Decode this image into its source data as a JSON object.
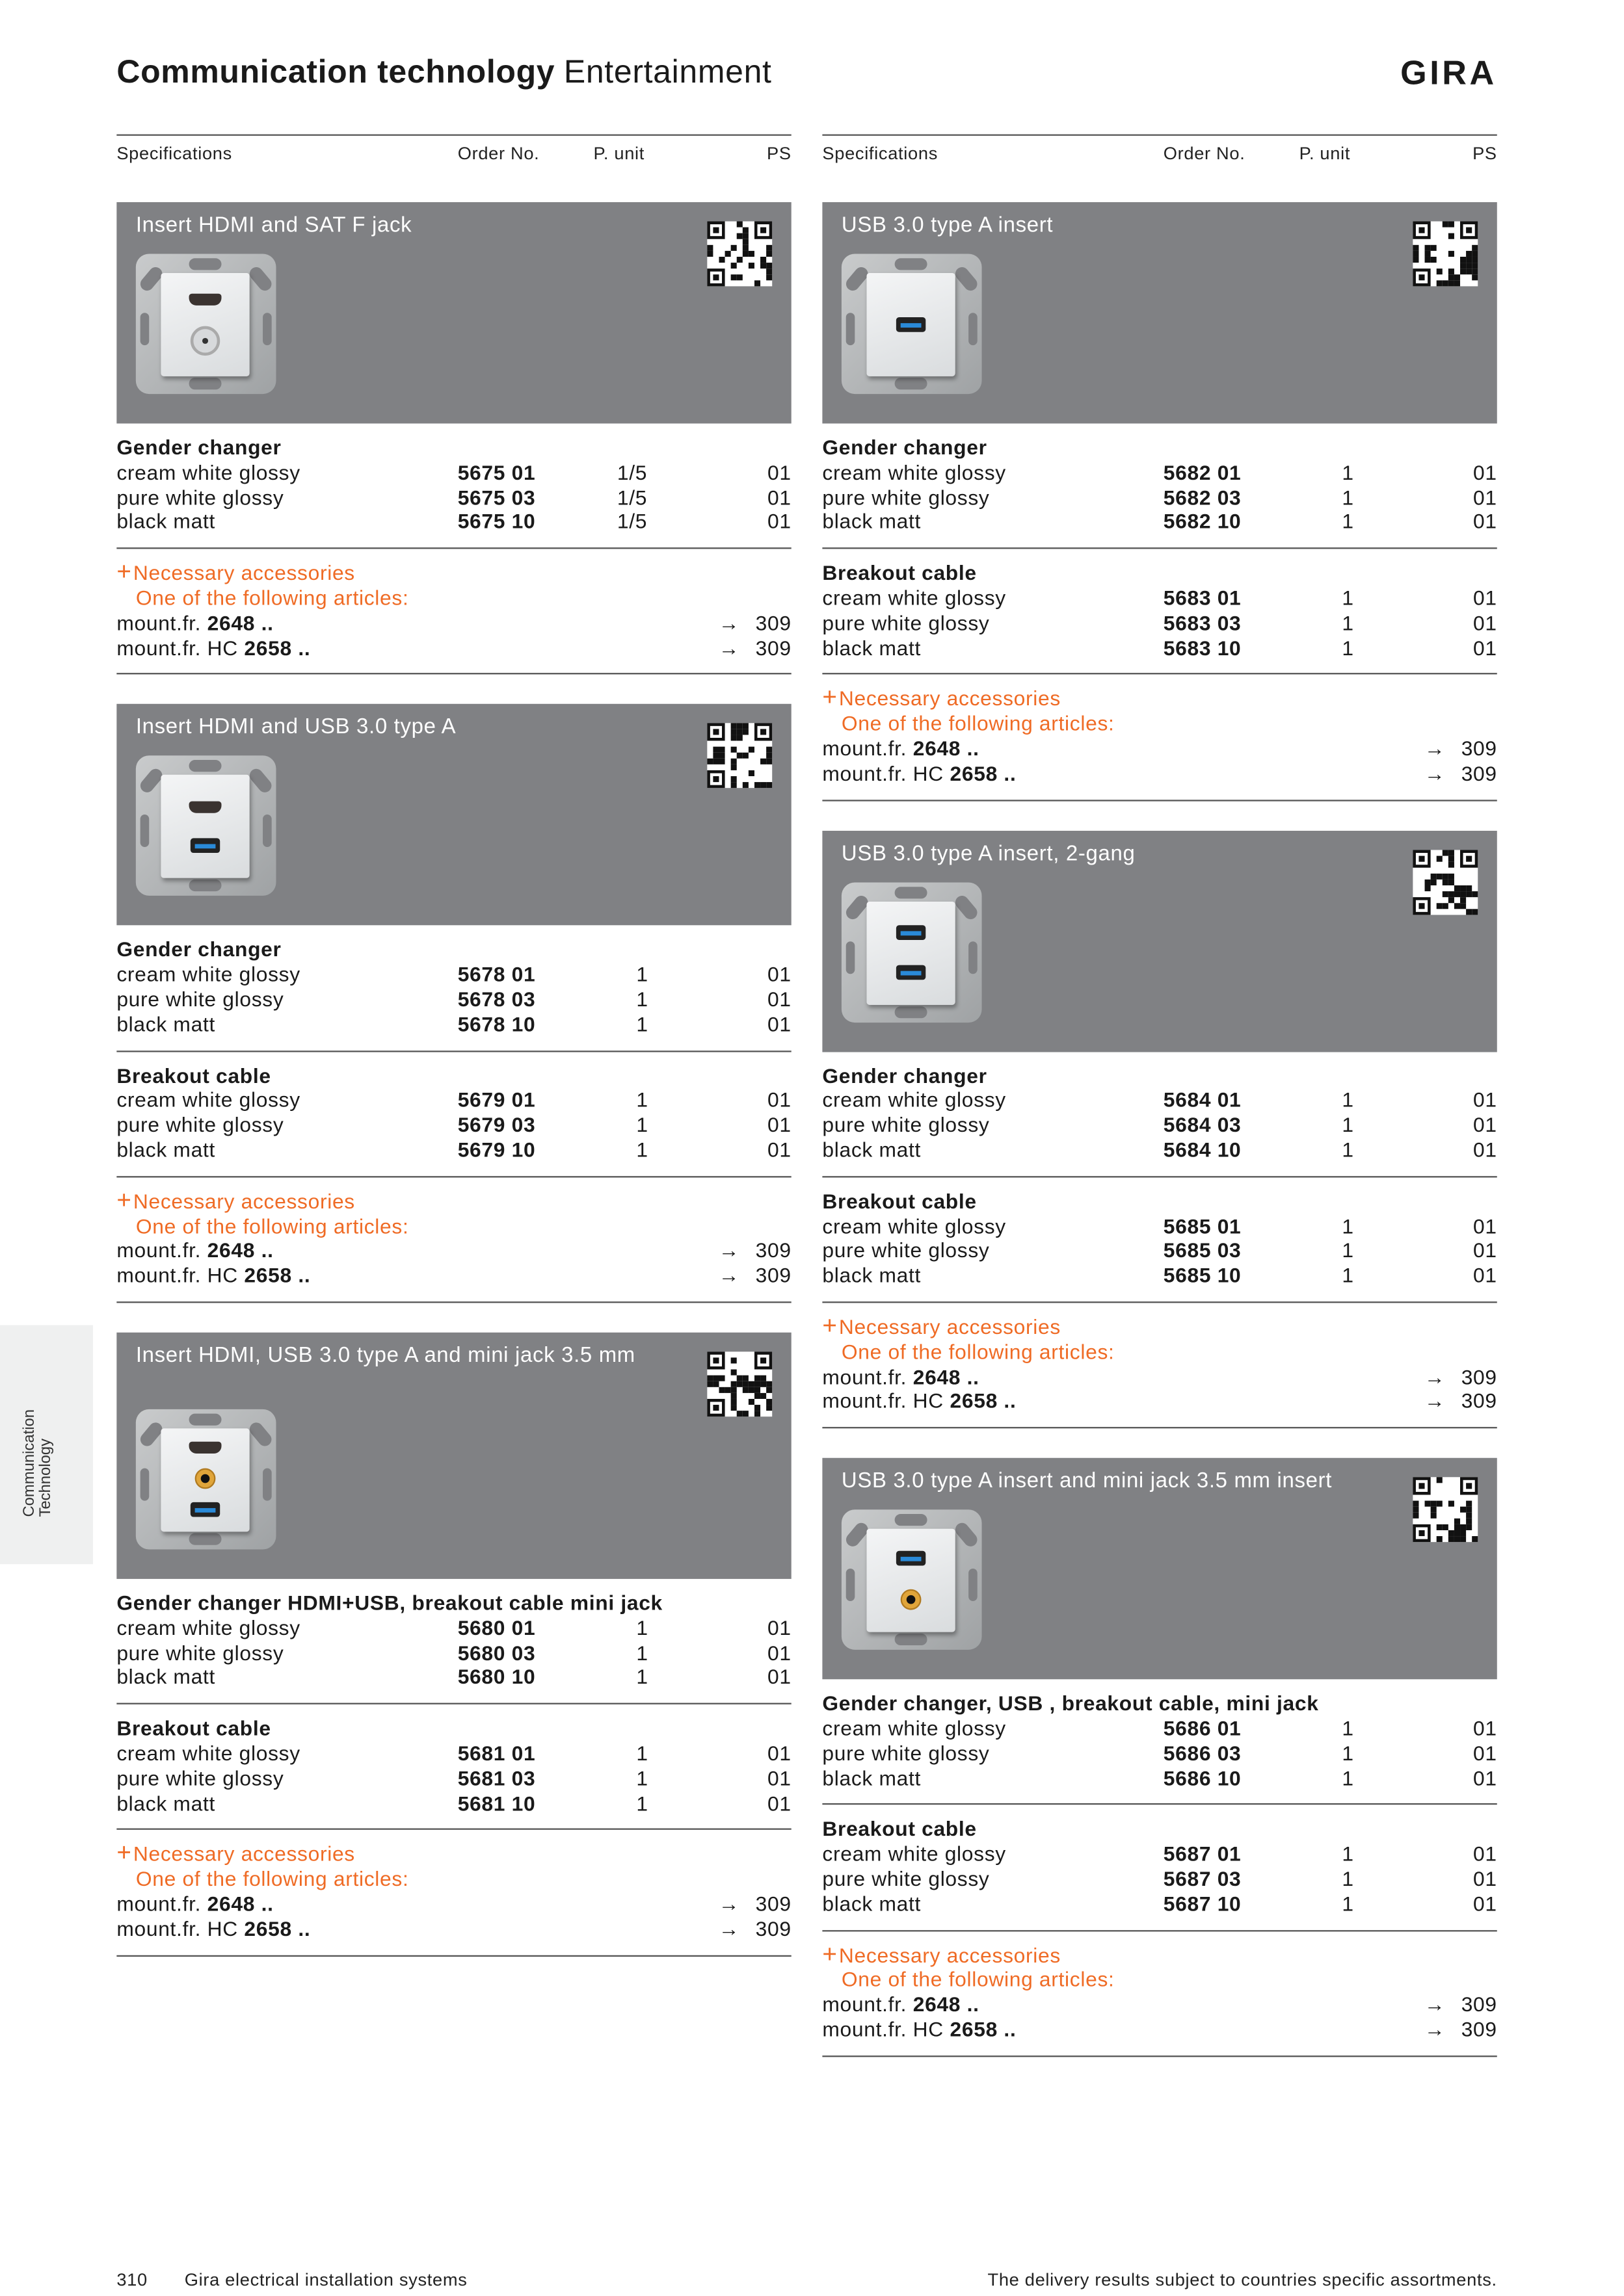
{
  "header": {
    "title": "Communication technology",
    "subtitle": "Entertainment",
    "logo": "GIRA"
  },
  "column_headers": {
    "spec": "Specifications",
    "order": "Order No.",
    "unit": "P. unit",
    "ps": "PS"
  },
  "sidetab": {
    "line1": "Communication",
    "line2": "Technology"
  },
  "footer": {
    "page": "310",
    "publication": "Gira electrical installation systems",
    "note": "The delivery results subject to countries specific assortments."
  },
  "colors": {
    "banner": "#808184",
    "accent": "#ef6b25",
    "sidetab": "#eff0f0"
  },
  "accessory_defaults": {
    "heading": "Necessary accessories",
    "subheading": "One of the following articles:"
  },
  "columns": [
    {
      "blocks": [
        {
          "title": "Insert HDMI and SAT F jack",
          "ports": [
            "hdmi-port-icon",
            "coax-port-icon"
          ],
          "groups": [
            {
              "heading": "Gender changer",
              "rows": [
                {
                  "spec": "cream white glossy",
                  "order": "5675 01",
                  "unit": "1/5",
                  "ps": "01"
                },
                {
                  "spec": "pure white glossy",
                  "order": "5675 03",
                  "unit": "1/5",
                  "ps": "01"
                },
                {
                  "spec": "black matt",
                  "order": "5675 10",
                  "unit": "1/5",
                  "ps": "01"
                }
              ]
            }
          ],
          "accessories": {
            "heading": "Necessary accessories",
            "subheading": "One of the following articles:",
            "items": [
              {
                "prefix": "mount.fr.",
                "number": "2648 ..",
                "arrow": "→",
                "page": "309"
              },
              {
                "prefix": "mount.fr. HC",
                "number": "2658 ..",
                "arrow": "→",
                "page": "309"
              }
            ]
          }
        },
        {
          "title": "Insert HDMI and USB 3.0 type A",
          "ports": [
            "hdmi-port-icon",
            "usb-port-icon"
          ],
          "groups": [
            {
              "heading": "Gender changer",
              "rows": [
                {
                  "spec": "cream white glossy",
                  "order": "5678 01",
                  "unit": "1",
                  "ps": "01"
                },
                {
                  "spec": "pure white glossy",
                  "order": "5678 03",
                  "unit": "1",
                  "ps": "01"
                },
                {
                  "spec": "black matt",
                  "order": "5678 10",
                  "unit": "1",
                  "ps": "01"
                }
              ]
            },
            {
              "heading": "Breakout cable",
              "rows": [
                {
                  "spec": "cream white glossy",
                  "order": "5679 01",
                  "unit": "1",
                  "ps": "01"
                },
                {
                  "spec": "pure white glossy",
                  "order": "5679 03",
                  "unit": "1",
                  "ps": "01"
                },
                {
                  "spec": "black matt",
                  "order": "5679 10",
                  "unit": "1",
                  "ps": "01"
                }
              ]
            }
          ],
          "accessories": {
            "heading": "Necessary accessories",
            "subheading": "One of the following articles:",
            "items": [
              {
                "prefix": "mount.fr.",
                "number": "2648 ..",
                "arrow": "→",
                "page": "309"
              },
              {
                "prefix": "mount.fr. HC",
                "number": "2658 ..",
                "arrow": "→",
                "page": "309"
              }
            ]
          }
        },
        {
          "title": "Insert HDMI, USB 3.0 type A and mini jack 3.5 mm",
          "tall": true,
          "ports": [
            "hdmi-port-icon",
            "jack-port-icon",
            "usb-port-icon"
          ],
          "groups": [
            {
              "heading": "Gender changer HDMI+USB, breakout cable mini jack",
              "rows": [
                {
                  "spec": "cream white glossy",
                  "order": "5680 01",
                  "unit": "1",
                  "ps": "01"
                },
                {
                  "spec": "pure white glossy",
                  "order": "5680 03",
                  "unit": "1",
                  "ps": "01"
                },
                {
                  "spec": "black matt",
                  "order": "5680 10",
                  "unit": "1",
                  "ps": "01"
                }
              ]
            },
            {
              "heading": "Breakout cable",
              "rows": [
                {
                  "spec": "cream white glossy",
                  "order": "5681 01",
                  "unit": "1",
                  "ps": "01"
                },
                {
                  "spec": "pure white glossy",
                  "order": "5681 03",
                  "unit": "1",
                  "ps": "01"
                },
                {
                  "spec": "black matt",
                  "order": "5681 10",
                  "unit": "1",
                  "ps": "01"
                }
              ]
            }
          ],
          "accessories": {
            "heading": "Necessary accessories",
            "subheading": "One of the following articles:",
            "items": [
              {
                "prefix": "mount.fr.",
                "number": "2648 ..",
                "arrow": "→",
                "page": "309"
              },
              {
                "prefix": "mount.fr. HC",
                "number": "2658 ..",
                "arrow": "→",
                "page": "309"
              }
            ]
          }
        }
      ]
    },
    {
      "blocks": [
        {
          "title": "USB 3.0 type A insert",
          "ports": [
            "usb-port-icon"
          ],
          "groups": [
            {
              "heading": "Gender changer",
              "rows": [
                {
                  "spec": "cream white glossy",
                  "order": "5682 01",
                  "unit": "1",
                  "ps": "01"
                },
                {
                  "spec": "pure white glossy",
                  "order": "5682 03",
                  "unit": "1",
                  "ps": "01"
                },
                {
                  "spec": "black matt",
                  "order": "5682 10",
                  "unit": "1",
                  "ps": "01"
                }
              ]
            },
            {
              "heading": "Breakout cable",
              "rows": [
                {
                  "spec": "cream white glossy",
                  "order": "5683 01",
                  "unit": "1",
                  "ps": "01"
                },
                {
                  "spec": "pure white glossy",
                  "order": "5683 03",
                  "unit": "1",
                  "ps": "01"
                },
                {
                  "spec": "black matt",
                  "order": "5683 10",
                  "unit": "1",
                  "ps": "01"
                }
              ]
            }
          ],
          "accessories": {
            "heading": "Necessary accessories",
            "subheading": "One of the following articles:",
            "items": [
              {
                "prefix": "mount.fr.",
                "number": "2648 ..",
                "arrow": "→",
                "page": "309"
              },
              {
                "prefix": "mount.fr. HC",
                "number": "2658 ..",
                "arrow": "→",
                "page": "309"
              }
            ]
          }
        },
        {
          "title": "USB 3.0 type A insert, 2-gang",
          "ports": [
            "usb-port-icon",
            "usb-port-icon"
          ],
          "groups": [
            {
              "heading": "Gender changer",
              "rows": [
                {
                  "spec": "cream white glossy",
                  "order": "5684 01",
                  "unit": "1",
                  "ps": "01"
                },
                {
                  "spec": "pure white glossy",
                  "order": "5684 03",
                  "unit": "1",
                  "ps": "01"
                },
                {
                  "spec": "black matt",
                  "order": "5684 10",
                  "unit": "1",
                  "ps": "01"
                }
              ]
            },
            {
              "heading": "Breakout cable",
              "rows": [
                {
                  "spec": "cream white glossy",
                  "order": "5685 01",
                  "unit": "1",
                  "ps": "01"
                },
                {
                  "spec": "pure white glossy",
                  "order": "5685 03",
                  "unit": "1",
                  "ps": "01"
                },
                {
                  "spec": "black matt",
                  "order": "5685 10",
                  "unit": "1",
                  "ps": "01"
                }
              ]
            }
          ],
          "accessories": {
            "heading": "Necessary accessories",
            "subheading": "One of the following articles:",
            "items": [
              {
                "prefix": "mount.fr.",
                "number": "2648 ..",
                "arrow": "→",
                "page": "309"
              },
              {
                "prefix": "mount.fr. HC",
                "number": "2658 ..",
                "arrow": "→",
                "page": "309"
              }
            ]
          }
        },
        {
          "title": "USB 3.0 type A insert and mini jack 3.5 mm insert",
          "ports": [
            "usb-port-icon",
            "jack-port-icon"
          ],
          "groups": [
            {
              "heading": "Gender changer, USB , breakout cable, mini jack",
              "rows": [
                {
                  "spec": "cream white glossy",
                  "order": "5686 01",
                  "unit": "1",
                  "ps": "01"
                },
                {
                  "spec": "pure white glossy",
                  "order": "5686 03",
                  "unit": "1",
                  "ps": "01"
                },
                {
                  "spec": "black matt",
                  "order": "5686 10",
                  "unit": "1",
                  "ps": "01"
                }
              ]
            },
            {
              "heading": "Breakout cable",
              "rows": [
                {
                  "spec": "cream white glossy",
                  "order": "5687 01",
                  "unit": "1",
                  "ps": "01"
                },
                {
                  "spec": "pure white glossy",
                  "order": "5687 03",
                  "unit": "1",
                  "ps": "01"
                },
                {
                  "spec": "black matt",
                  "order": "5687 10",
                  "unit": "1",
                  "ps": "01"
                }
              ]
            }
          ],
          "accessories": {
            "heading": "Necessary accessories",
            "subheading": "One of the following articles:",
            "items": [
              {
                "prefix": "mount.fr.",
                "number": "2648 ..",
                "arrow": "→",
                "page": "309"
              },
              {
                "prefix": "mount.fr. HC",
                "number": "2658 ..",
                "arrow": "→",
                "page": "309"
              }
            ]
          }
        }
      ]
    }
  ]
}
